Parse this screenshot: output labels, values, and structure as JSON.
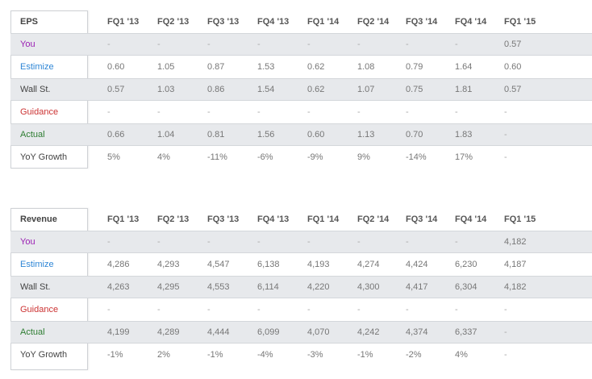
{
  "colors": {
    "you": "#9a1fb3",
    "estimize": "#2e86d6",
    "wallst": "#444444",
    "guidance": "#cc3333",
    "actual": "#2e7d32",
    "yoy": "#444444",
    "row_shade": "#e7e9ec"
  },
  "eps": {
    "header": "EPS",
    "quarters": [
      "FQ1 '13",
      "FQ2 '13",
      "FQ3 '13",
      "FQ4 '13",
      "FQ1 '14",
      "FQ2 '14",
      "FQ3 '14",
      "FQ4 '14",
      "FQ1 '15"
    ],
    "rows": [
      {
        "label": "You",
        "values": [
          "-",
          "-",
          "-",
          "-",
          "-",
          "-",
          "-",
          "-",
          "0.57"
        ]
      },
      {
        "label": "Estimize",
        "values": [
          "0.60",
          "1.05",
          "0.87",
          "1.53",
          "0.62",
          "1.08",
          "0.79",
          "1.64",
          "0.60"
        ]
      },
      {
        "label": "Wall St.",
        "values": [
          "0.57",
          "1.03",
          "0.86",
          "1.54",
          "0.62",
          "1.07",
          "0.75",
          "1.81",
          "0.57"
        ]
      },
      {
        "label": "Guidance",
        "values": [
          "-",
          "-",
          "-",
          "-",
          "-",
          "-",
          "-",
          "-",
          "-"
        ]
      },
      {
        "label": "Actual",
        "values": [
          "0.66",
          "1.04",
          "0.81",
          "1.56",
          "0.60",
          "1.13",
          "0.70",
          "1.83",
          "-"
        ]
      },
      {
        "label": "YoY Growth",
        "values": [
          "5%",
          "4%",
          "-11%",
          "-6%",
          "-9%",
          "9%",
          "-14%",
          "17%",
          "-"
        ]
      }
    ]
  },
  "revenue": {
    "header": "Revenue",
    "quarters": [
      "FQ1 '13",
      "FQ2 '13",
      "FQ3 '13",
      "FQ4 '13",
      "FQ1 '14",
      "FQ2 '14",
      "FQ3 '14",
      "FQ4 '14",
      "FQ1 '15"
    ],
    "rows": [
      {
        "label": "You",
        "values": [
          "-",
          "-",
          "-",
          "-",
          "-",
          "-",
          "-",
          "-",
          "4,182"
        ]
      },
      {
        "label": "Estimize",
        "values": [
          "4,286",
          "4,293",
          "4,547",
          "6,138",
          "4,193",
          "4,274",
          "4,424",
          "6,230",
          "4,187"
        ]
      },
      {
        "label": "Wall St.",
        "values": [
          "4,263",
          "4,295",
          "4,553",
          "6,114",
          "4,220",
          "4,300",
          "4,417",
          "6,304",
          "4,182"
        ]
      },
      {
        "label": "Guidance",
        "values": [
          "-",
          "-",
          "-",
          "-",
          "-",
          "-",
          "-",
          "-",
          "-"
        ]
      },
      {
        "label": "Actual",
        "values": [
          "4,199",
          "4,289",
          "4,444",
          "6,099",
          "4,070",
          "4,242",
          "4,374",
          "6,337",
          "-"
        ]
      },
      {
        "label": "YoY Growth",
        "values": [
          "-1%",
          "2%",
          "-1%",
          "-4%",
          "-3%",
          "-1%",
          "-2%",
          "4%",
          "-"
        ]
      }
    ]
  }
}
